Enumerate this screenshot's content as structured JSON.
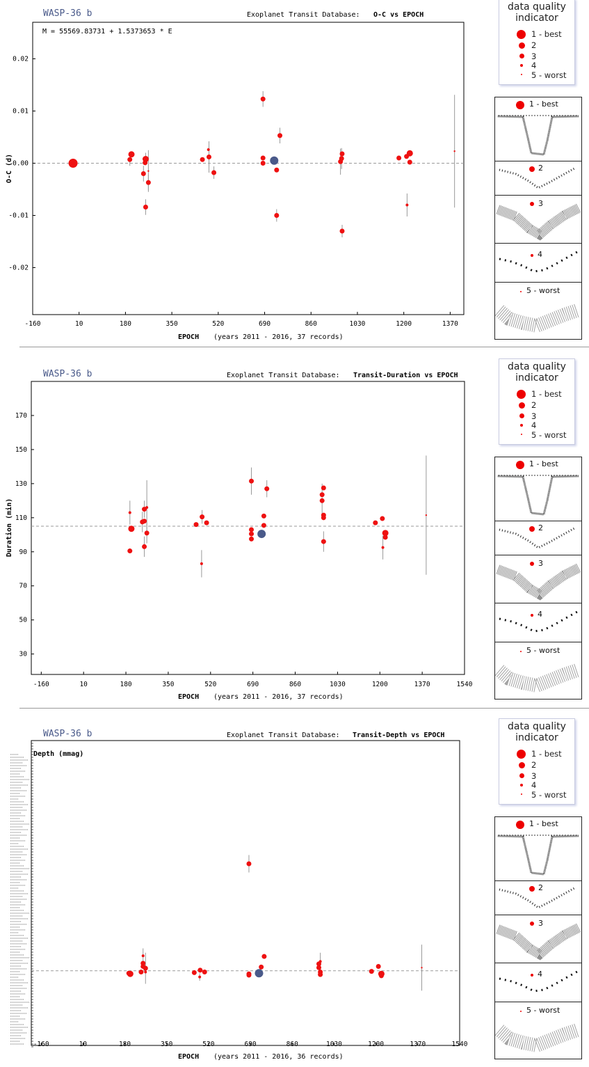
{
  "quality_legend": {
    "title_line1": "data quality",
    "title_line2": "indicator",
    "items": [
      "1 - best",
      "2",
      "3",
      "4",
      "5 - worst"
    ]
  },
  "thumbnail_labels": [
    "1 - best",
    "2",
    "3",
    "4",
    "5 - worst"
  ],
  "colors": {
    "point": "#ee1111",
    "highlight": "#4a5a8a",
    "title": "#4a5a8a",
    "grid": "#999999"
  },
  "chart_data": [
    {
      "type": "scatter",
      "planet": "WASP-36 b",
      "source": "Exoplanet Transit Database:",
      "title": "O-C vs EPOCH",
      "ephemeris": "M = 55569.83731 + 1.5373653 * E",
      "xlabel": "EPOCH",
      "xnote": "(years 2011 - 2016, 37 records)",
      "ylabel": "O-C (d)",
      "xlim": [
        -160,
        1420
      ],
      "ylim": [
        -0.029,
        0.027
      ],
      "xticks": [
        "-160",
        "10",
        "180",
        "350",
        "520",
        "690",
        "860",
        "1030",
        "1200",
        "1370"
      ],
      "yticks": [
        "0.02",
        "0.01",
        "0.00",
        "-0.01",
        "-0.02"
      ],
      "ytick_values": [
        0.02,
        0.01,
        0.0,
        -0.01,
        -0.02
      ],
      "reference_y": 0.0,
      "points": [
        {
          "x": -12,
          "y": 0.0,
          "q": 1
        },
        {
          "x": 196,
          "y": 0.0007,
          "q": 3,
          "err": 0.0012
        },
        {
          "x": 202,
          "y": 0.0017,
          "q": 2
        },
        {
          "x": 246,
          "y": -0.002,
          "q": 3,
          "err": 0.0015
        },
        {
          "x": 252,
          "y": 0.0001,
          "q": 3
        },
        {
          "x": 254,
          "y": 0.0008,
          "q": 2,
          "err": 0.0012
        },
        {
          "x": 254,
          "y": -0.0084,
          "q": 3,
          "err": 0.0015
        },
        {
          "x": 264,
          "y": -0.0015,
          "q": 5,
          "err": 0.004
        },
        {
          "x": 264,
          "y": -0.0037,
          "q": 3,
          "err": 0.0015
        },
        {
          "x": 462,
          "y": 0.0007,
          "q": 3
        },
        {
          "x": 484,
          "y": 0.0026,
          "q": 4
        },
        {
          "x": 486,
          "y": 0.0012,
          "q": 3,
          "err": 0.003
        },
        {
          "x": 504,
          "y": -0.0018,
          "q": 3,
          "err": 0.0012
        },
        {
          "x": 684,
          "y": 0.0123,
          "q": 3,
          "err": 0.0015
        },
        {
          "x": 684,
          "y": 0.001,
          "q": 3
        },
        {
          "x": 684,
          "y": 0.0,
          "q": 3
        },
        {
          "x": 725,
          "y": 0.0005,
          "q": 0
        },
        {
          "x": 734,
          "y": -0.0013,
          "q": 3
        },
        {
          "x": 734,
          "y": -0.01,
          "q": 3,
          "err": 0.0012
        },
        {
          "x": 746,
          "y": 0.0053,
          "q": 3,
          "err": 0.0015
        },
        {
          "x": 968,
          "y": 0.0003,
          "q": 3,
          "err": 0.0025
        },
        {
          "x": 972,
          "y": 0.0009,
          "q": 3,
          "err": 0.002
        },
        {
          "x": 974,
          "y": 0.0018,
          "q": 3
        },
        {
          "x": 974,
          "y": -0.013,
          "q": 3,
          "err": 0.0012
        },
        {
          "x": 1182,
          "y": 0.001,
          "q": 3
        },
        {
          "x": 1210,
          "y": 0.0013,
          "q": 3
        },
        {
          "x": 1212,
          "y": -0.008,
          "q": 4,
          "err": 0.0022
        },
        {
          "x": 1222,
          "y": 0.0019,
          "q": 2
        },
        {
          "x": 1222,
          "y": 0.0002,
          "q": 3
        },
        {
          "x": 1386,
          "y": 0.0023,
          "q": 5,
          "err": 0.0108
        }
      ]
    },
    {
      "type": "scatter",
      "planet": "WASP-36 b",
      "source": "Exoplanet Transit Database:",
      "title": "Transit-Duration vs EPOCH",
      "xlabel": "EPOCH",
      "xnote": "(years 2011 - 2016, 37 records)",
      "ylabel": "Duration (min)",
      "xlim": [
        -200,
        1540
      ],
      "ylim": [
        18,
        190
      ],
      "xticks": [
        "-160",
        "10",
        "180",
        "350",
        "520",
        "690",
        "860",
        "1030",
        "1200",
        "1370",
        "1540"
      ],
      "yticks": [
        "170",
        "150",
        "130",
        "110",
        "90",
        "70",
        "50",
        "30"
      ],
      "ytick_values": [
        170,
        150,
        130,
        110,
        90,
        70,
        50,
        30
      ],
      "reference_y": 105,
      "points": [
        {
          "x": 196,
          "y": 113,
          "q": 4,
          "err": 7
        },
        {
          "x": 196,
          "y": 90.5,
          "q": 3
        },
        {
          "x": 202,
          "y": 103.5,
          "q": 2
        },
        {
          "x": 246,
          "y": 107.5,
          "q": 3,
          "err": 6
        },
        {
          "x": 254,
          "y": 108,
          "q": 3
        },
        {
          "x": 254,
          "y": 115,
          "q": 3,
          "err": 5
        },
        {
          "x": 254,
          "y": 93,
          "q": 3,
          "err": 6
        },
        {
          "x": 264,
          "y": 116,
          "q": 4,
          "err": 16
        },
        {
          "x": 264,
          "y": 101,
          "q": 3,
          "err": 6
        },
        {
          "x": 462,
          "y": 106,
          "q": 3
        },
        {
          "x": 484,
          "y": 83,
          "q": 4,
          "err": 8
        },
        {
          "x": 486,
          "y": 110.5,
          "q": 3,
          "err": 4
        },
        {
          "x": 504,
          "y": 107,
          "q": 3
        },
        {
          "x": 684,
          "y": 131.5,
          "q": 3,
          "err": 8
        },
        {
          "x": 684,
          "y": 103,
          "q": 3
        },
        {
          "x": 684,
          "y": 100.5,
          "q": 3
        },
        {
          "x": 684,
          "y": 97.5,
          "q": 3
        },
        {
          "x": 725,
          "y": 100.5,
          "q": 0
        },
        {
          "x": 734,
          "y": 111,
          "q": 3
        },
        {
          "x": 734,
          "y": 105.5,
          "q": 3
        },
        {
          "x": 746,
          "y": 127,
          "q": 3,
          "err": 5
        },
        {
          "x": 968,
          "y": 123.5,
          "q": 3
        },
        {
          "x": 968,
          "y": 120,
          "q": 3,
          "err": 10
        },
        {
          "x": 974,
          "y": 127.5,
          "q": 3
        },
        {
          "x": 974,
          "y": 111.5,
          "q": 3
        },
        {
          "x": 974,
          "y": 110,
          "q": 3
        },
        {
          "x": 974,
          "y": 96,
          "q": 3,
          "err": 6
        },
        {
          "x": 1182,
          "y": 107,
          "q": 3
        },
        {
          "x": 1210,
          "y": 109.5,
          "q": 3
        },
        {
          "x": 1212,
          "y": 92.5,
          "q": 4,
          "err": 7
        },
        {
          "x": 1222,
          "y": 101,
          "q": 2
        },
        {
          "x": 1222,
          "y": 98.5,
          "q": 3
        },
        {
          "x": 1386,
          "y": 111.5,
          "q": 5,
          "err": 35
        }
      ]
    },
    {
      "type": "scatter",
      "planet": "WASP-36 b",
      "source": "Exoplanet Transit Database:",
      "title": "Transit-Depth vs EPOCH",
      "xlabel": "EPOCH",
      "xnote": "(years 2011 - 2016, 36 records)",
      "ylabel": "Depth (mmag)",
      "xlim": [
        -200,
        1540
      ],
      "ylim": [
        -12,
        37
      ],
      "xticks": [
        "-160",
        "10",
        "180",
        "350",
        "520",
        "690",
        "860",
        "1030",
        "1200",
        "1370",
        "1540"
      ],
      "reference_y": 0,
      "points": [
        {
          "x": 196,
          "y": -0.4,
          "q": 3
        },
        {
          "x": 202,
          "y": -0.5,
          "q": 2
        },
        {
          "x": 246,
          "y": -0.2,
          "q": 3
        },
        {
          "x": 254,
          "y": 2.4,
          "q": 4,
          "err": 1.2
        },
        {
          "x": 254,
          "y": 1.2,
          "q": 3
        },
        {
          "x": 254,
          "y": 0.7,
          "q": 3
        },
        {
          "x": 264,
          "y": 0.4,
          "q": 3,
          "err": 2.5
        },
        {
          "x": 264,
          "y": -0.2,
          "q": 4
        },
        {
          "x": 462,
          "y": -0.3,
          "q": 3
        },
        {
          "x": 484,
          "y": -1,
          "q": 4,
          "err": 0.6
        },
        {
          "x": 486,
          "y": 0.1,
          "q": 3
        },
        {
          "x": 504,
          "y": -0.2,
          "q": 3
        },
        {
          "x": 684,
          "y": 17.2,
          "q": 3,
          "err": 1.4
        },
        {
          "x": 684,
          "y": -0.5,
          "q": 3
        },
        {
          "x": 684,
          "y": -0.7,
          "q": 3
        },
        {
          "x": 725,
          "y": -0.4,
          "q": 0
        },
        {
          "x": 734,
          "y": 0.6,
          "q": 3
        },
        {
          "x": 746,
          "y": 2.3,
          "q": 3
        },
        {
          "x": 968,
          "y": 1.1,
          "q": 3
        },
        {
          "x": 968,
          "y": 0.5,
          "q": 3
        },
        {
          "x": 974,
          "y": 1.5,
          "q": 4,
          "err": 1.4
        },
        {
          "x": 974,
          "y": -0.2,
          "q": 3
        },
        {
          "x": 974,
          "y": -0.6,
          "q": 3
        },
        {
          "x": 1182,
          "y": -0.1,
          "q": 3
        },
        {
          "x": 1210,
          "y": 0.7,
          "q": 3
        },
        {
          "x": 1222,
          "y": -0.5,
          "q": 2
        },
        {
          "x": 1222,
          "y": -0.8,
          "q": 3
        },
        {
          "x": 1386,
          "y": 0.5,
          "q": 5,
          "err": 3.7
        }
      ]
    }
  ]
}
